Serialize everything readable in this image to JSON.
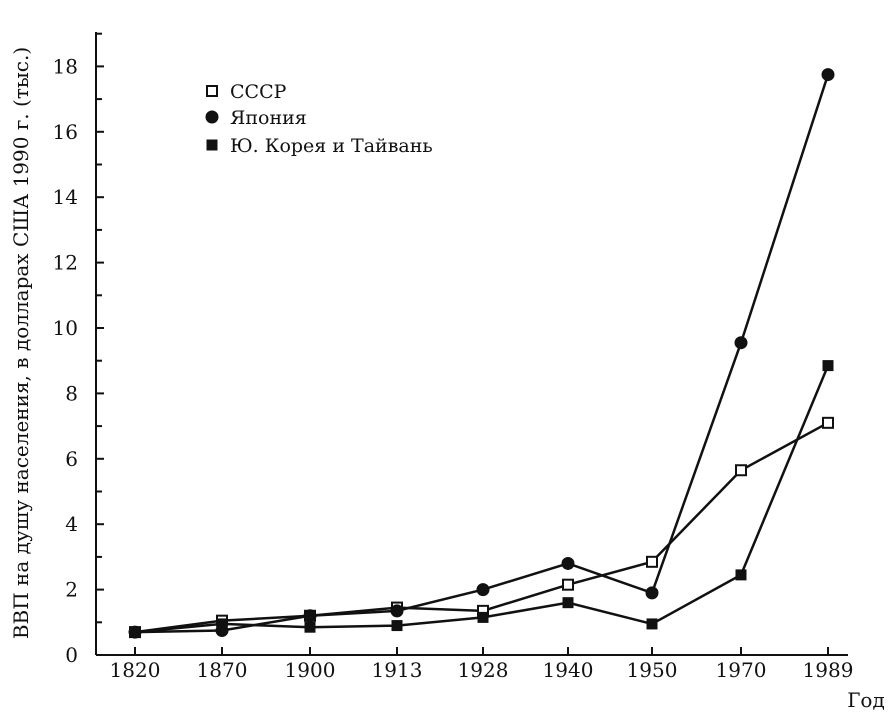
{
  "chart_data": {
    "type": "line",
    "xlabel": "Год",
    "ylabel": "ВВП на душу населения, в долларах США 1990 г. (тыс.)",
    "categories": [
      "1820",
      "1870",
      "1900",
      "1913",
      "1928",
      "1940",
      "1950",
      "1970",
      "1989"
    ],
    "ylim": [
      0,
      19
    ],
    "yticks": [
      0,
      2,
      4,
      6,
      8,
      10,
      12,
      14,
      16,
      18
    ],
    "grid": false,
    "legend_position": "top-left",
    "series": [
      {
        "name": "СССР",
        "marker": "open-square",
        "values": [
          0.7,
          1.05,
          1.2,
          1.45,
          1.35,
          2.15,
          2.85,
          5.65,
          7.1
        ]
      },
      {
        "name": "Япония",
        "marker": "filled-circle",
        "values": [
          0.7,
          0.75,
          1.2,
          1.35,
          2.0,
          2.8,
          1.9,
          9.55,
          17.75
        ]
      },
      {
        "name": "Ю. Корея и Тайвань",
        "marker": "filled-square",
        "values": [
          0.7,
          0.95,
          0.85,
          0.9,
          1.15,
          1.6,
          0.95,
          2.45,
          8.85
        ]
      }
    ]
  }
}
